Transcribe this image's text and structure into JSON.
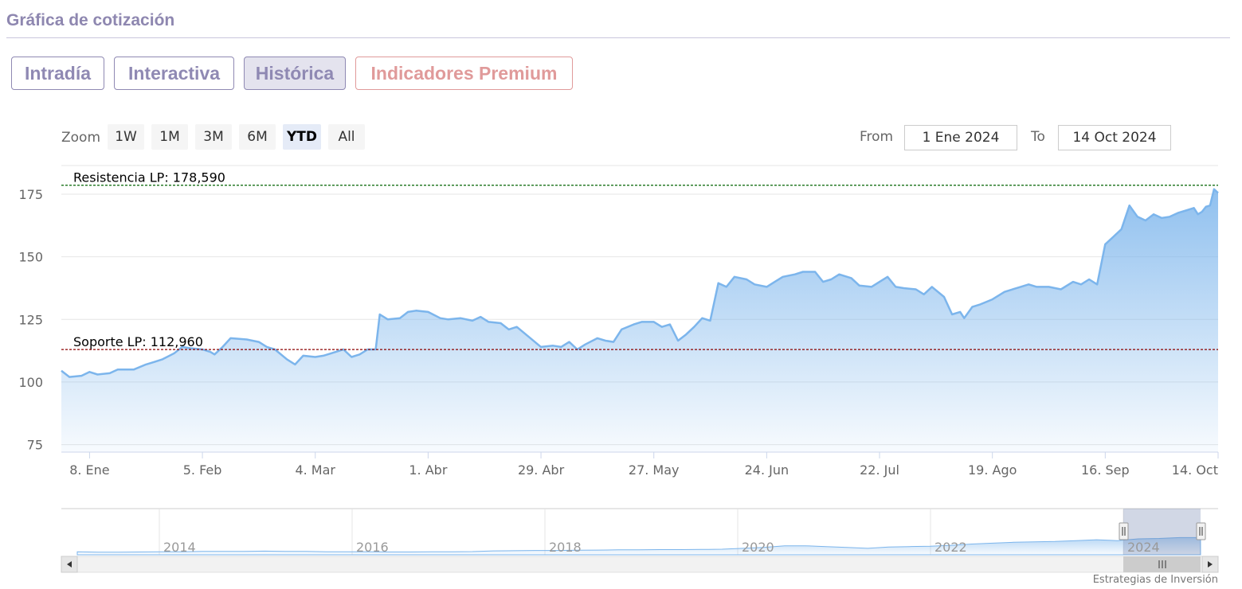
{
  "header": {
    "title": "Gráfica de cotización"
  },
  "tabs": [
    {
      "label": "Intradía",
      "active": false
    },
    {
      "label": "Interactiva",
      "active": false
    },
    {
      "label": "Histórica",
      "active": true
    },
    {
      "label": "Indicadores Premium",
      "active": false
    }
  ],
  "zoom": {
    "label": "Zoom",
    "buttons": [
      "1W",
      "1M",
      "3M",
      "6M",
      "YTD",
      "All"
    ],
    "active": "YTD"
  },
  "range": {
    "from_label": "From",
    "from_value": "1 Ene 2024",
    "to_label": "To",
    "to_value": "14 Oct 2024"
  },
  "colors": {
    "tab": "#8f89b3",
    "premium": "#e09a9a",
    "series": "#7cb5ec",
    "resistance": "#006400",
    "support": "#8b0000"
  },
  "chart_data": {
    "type": "area",
    "title": "",
    "xlabel": "",
    "ylabel": "",
    "ylim": [
      72,
      182
    ],
    "yticks": [
      75,
      100,
      125,
      150,
      175
    ],
    "grid": true,
    "xticks": [
      {
        "label": "8. Ene",
        "x": "2024-01-08"
      },
      {
        "label": "5. Feb",
        "x": "2024-02-05"
      },
      {
        "label": "4. Mar",
        "x": "2024-03-04"
      },
      {
        "label": "1. Abr",
        "x": "2024-04-01"
      },
      {
        "label": "29. Abr",
        "x": "2024-04-29"
      },
      {
        "label": "27. May",
        "x": "2024-05-27"
      },
      {
        "label": "24. Jun",
        "x": "2024-06-24"
      },
      {
        "label": "22. Jul",
        "x": "2024-07-22"
      },
      {
        "label": "19. Ago",
        "x": "2024-08-19"
      },
      {
        "label": "16. Sep",
        "x": "2024-09-16"
      },
      {
        "label": "14. Oct",
        "x": "2024-10-14"
      }
    ],
    "series": [
      {
        "points": [
          [
            "2024-01-01",
            104.5
          ],
          [
            "2024-01-03",
            102
          ],
          [
            "2024-01-06",
            102.5
          ],
          [
            "2024-01-08",
            104
          ],
          [
            "2024-01-10",
            103
          ],
          [
            "2024-01-13",
            103.5
          ],
          [
            "2024-01-15",
            105
          ],
          [
            "2024-01-19",
            105
          ],
          [
            "2024-01-22",
            107
          ],
          [
            "2024-01-24",
            108
          ],
          [
            "2024-01-26",
            109
          ],
          [
            "2024-01-29",
            111.5
          ],
          [
            "2024-01-31",
            114
          ],
          [
            "2024-02-02",
            113.5
          ],
          [
            "2024-02-05",
            113
          ],
          [
            "2024-02-07",
            112
          ],
          [
            "2024-02-08",
            111
          ],
          [
            "2024-02-10",
            114
          ],
          [
            "2024-02-12",
            117.5
          ],
          [
            "2024-02-16",
            117
          ],
          [
            "2024-02-19",
            116
          ],
          [
            "2024-02-21",
            114
          ],
          [
            "2024-02-23",
            113
          ],
          [
            "2024-02-26",
            109
          ],
          [
            "2024-02-28",
            107
          ],
          [
            "2024-03-01",
            110.5
          ],
          [
            "2024-03-04",
            110
          ],
          [
            "2024-03-06",
            110.5
          ],
          [
            "2024-03-08",
            111.5
          ],
          [
            "2024-03-11",
            113
          ],
          [
            "2024-03-13",
            110
          ],
          [
            "2024-03-15",
            111
          ],
          [
            "2024-03-17",
            113
          ],
          [
            "2024-03-19",
            113
          ],
          [
            "2024-03-20",
            127
          ],
          [
            "2024-03-22",
            125
          ],
          [
            "2024-03-25",
            125.5
          ],
          [
            "2024-03-27",
            128
          ],
          [
            "2024-03-29",
            128.5
          ],
          [
            "2024-04-01",
            128
          ],
          [
            "2024-04-04",
            125.5
          ],
          [
            "2024-04-06",
            125
          ],
          [
            "2024-04-09",
            125.5
          ],
          [
            "2024-04-12",
            124.5
          ],
          [
            "2024-04-14",
            126
          ],
          [
            "2024-04-16",
            124
          ],
          [
            "2024-04-19",
            123.5
          ],
          [
            "2024-04-21",
            121
          ],
          [
            "2024-04-23",
            122
          ],
          [
            "2024-04-26",
            118
          ],
          [
            "2024-04-29",
            114
          ],
          [
            "2024-05-02",
            114.5
          ],
          [
            "2024-05-04",
            114
          ],
          [
            "2024-05-06",
            116
          ],
          [
            "2024-05-08",
            113
          ],
          [
            "2024-05-10",
            115
          ],
          [
            "2024-05-13",
            117.5
          ],
          [
            "2024-05-15",
            116.5
          ],
          [
            "2024-05-17",
            116
          ],
          [
            "2024-05-19",
            121
          ],
          [
            "2024-05-22",
            123
          ],
          [
            "2024-05-24",
            124
          ],
          [
            "2024-05-27",
            124
          ],
          [
            "2024-05-29",
            122
          ],
          [
            "2024-05-31",
            123
          ],
          [
            "2024-06-02",
            116.5
          ],
          [
            "2024-06-04",
            119
          ],
          [
            "2024-06-06",
            122
          ],
          [
            "2024-06-08",
            125.5
          ],
          [
            "2024-06-10",
            124.5
          ],
          [
            "2024-06-12",
            139.5
          ],
          [
            "2024-06-14",
            138
          ],
          [
            "2024-06-16",
            142
          ],
          [
            "2024-06-19",
            141
          ],
          [
            "2024-06-21",
            139
          ],
          [
            "2024-06-24",
            138
          ],
          [
            "2024-06-26",
            140
          ],
          [
            "2024-06-28",
            142
          ],
          [
            "2024-07-01",
            143
          ],
          [
            "2024-07-03",
            144
          ],
          [
            "2024-07-06",
            144
          ],
          [
            "2024-07-08",
            140
          ],
          [
            "2024-07-10",
            141
          ],
          [
            "2024-07-12",
            143
          ],
          [
            "2024-07-15",
            141.5
          ],
          [
            "2024-07-17",
            138.5
          ],
          [
            "2024-07-20",
            138
          ],
          [
            "2024-07-22",
            140
          ],
          [
            "2024-07-24",
            142
          ],
          [
            "2024-07-26",
            138
          ],
          [
            "2024-07-28",
            137.5
          ],
          [
            "2024-07-31",
            137
          ],
          [
            "2024-08-02",
            135
          ],
          [
            "2024-08-04",
            138
          ],
          [
            "2024-08-07",
            134
          ],
          [
            "2024-08-09",
            127
          ],
          [
            "2024-08-11",
            128
          ],
          [
            "2024-08-12",
            125.5
          ],
          [
            "2024-08-14",
            130
          ],
          [
            "2024-08-16",
            131
          ],
          [
            "2024-08-19",
            133
          ],
          [
            "2024-08-22",
            136
          ],
          [
            "2024-08-26",
            138
          ],
          [
            "2024-08-28",
            139
          ],
          [
            "2024-08-30",
            138
          ],
          [
            "2024-09-02",
            138
          ],
          [
            "2024-09-05",
            137
          ],
          [
            "2024-09-08",
            140
          ],
          [
            "2024-09-10",
            139
          ],
          [
            "2024-09-12",
            141
          ],
          [
            "2024-09-14",
            139
          ],
          [
            "2024-09-16",
            155
          ],
          [
            "2024-09-18",
            158
          ],
          [
            "2024-09-20",
            161
          ],
          [
            "2024-09-22",
            170.5
          ],
          [
            "2024-09-24",
            166
          ],
          [
            "2024-09-26",
            164.5
          ],
          [
            "2024-09-28",
            167
          ],
          [
            "2024-09-30",
            165.5
          ],
          [
            "2024-10-02",
            166
          ],
          [
            "2024-10-04",
            167.5
          ],
          [
            "2024-10-06",
            168.5
          ],
          [
            "2024-10-08",
            169.5
          ],
          [
            "2024-10-09",
            167
          ],
          [
            "2024-10-10",
            168
          ],
          [
            "2024-10-11",
            170
          ],
          [
            "2024-10-12",
            170.5
          ],
          [
            "2024-10-13",
            177
          ],
          [
            "2024-10-14",
            175.5
          ]
        ]
      }
    ],
    "annotations": [
      {
        "label": "Resistencia LP: 178,590",
        "value": 178.59
      },
      {
        "label": "Soporte LP: 112,960",
        "value": 112.96
      }
    ],
    "navigator": {
      "year_labels": [
        "2014",
        "2016",
        "2018",
        "2020",
        "2022",
        "2024"
      ],
      "series_values": [
        102,
        101,
        101,
        101.5,
        102,
        102,
        103,
        103,
        103,
        103.5,
        103,
        103,
        102,
        102,
        102,
        101.5,
        101.5,
        102,
        102,
        102.5,
        104,
        104.5,
        105,
        105,
        105.5,
        106,
        106.5,
        106.5,
        107,
        107,
        107.5,
        108,
        110,
        112,
        116,
        116,
        114,
        112,
        110,
        113,
        114,
        115,
        117,
        120,
        122,
        124,
        125,
        126,
        128,
        130,
        128,
        132,
        133,
        135,
        135
      ]
    },
    "credit": "Estrategias de Inversión"
  }
}
